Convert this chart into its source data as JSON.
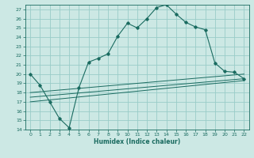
{
  "xlabel": "Humidex (Indice chaleur)",
  "bg_color": "#cce8e4",
  "grid_color": "#99ccc8",
  "line_color": "#1a6b60",
  "xlim": [
    -0.5,
    22.5
  ],
  "ylim": [
    14,
    27.5
  ],
  "xticks": [
    0,
    1,
    2,
    3,
    4,
    5,
    6,
    7,
    8,
    9,
    10,
    11,
    12,
    13,
    14,
    15,
    16,
    17,
    18,
    19,
    20,
    21,
    22
  ],
  "yticks": [
    14,
    15,
    16,
    17,
    18,
    19,
    20,
    21,
    22,
    23,
    24,
    25,
    26,
    27
  ],
  "main_x": [
    0,
    1,
    2,
    3,
    4,
    5,
    6,
    7,
    8,
    9,
    10,
    11,
    12,
    13,
    14,
    15,
    16,
    17,
    18,
    19,
    20,
    21,
    22
  ],
  "main_y": [
    20.0,
    18.8,
    17.0,
    15.2,
    14.2,
    18.5,
    21.3,
    21.7,
    22.2,
    24.1,
    25.5,
    25.0,
    26.0,
    27.2,
    27.5,
    26.5,
    25.6,
    25.1,
    24.8,
    21.2,
    20.3,
    20.2,
    19.5
  ],
  "line2_x": [
    0,
    22
  ],
  "line2_y": [
    18.0,
    20.0
  ],
  "line3_x": [
    0,
    22
  ],
  "line3_y": [
    17.5,
    19.5
  ],
  "line4_x": [
    0,
    22
  ],
  "line4_y": [
    17.0,
    19.3
  ]
}
